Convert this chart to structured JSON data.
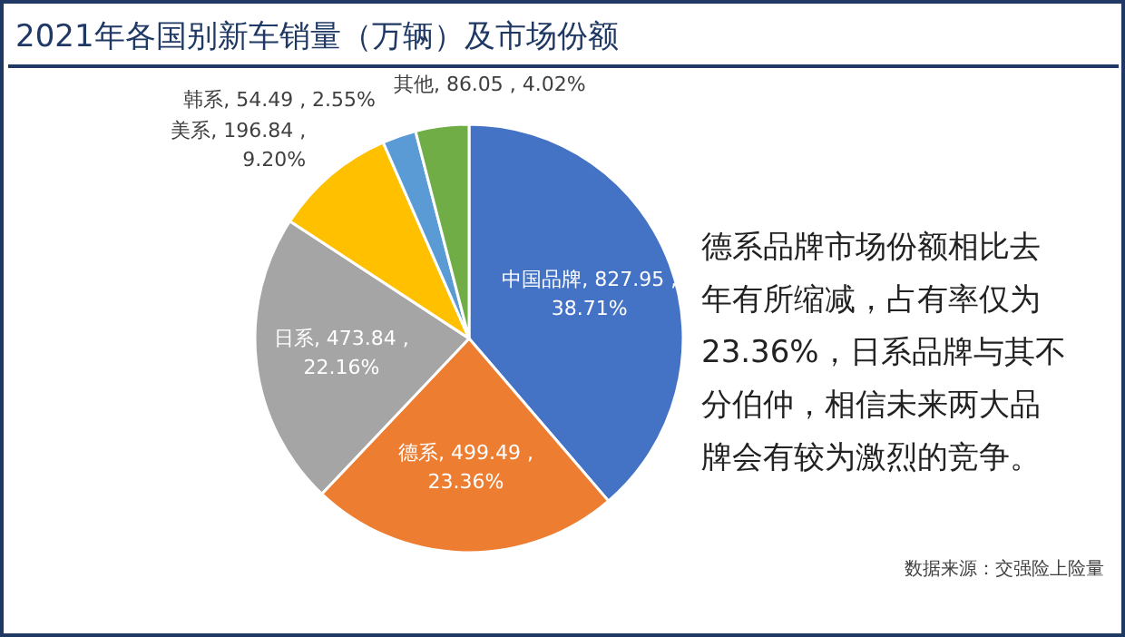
{
  "chart_data": {
    "type": "pie",
    "title": "2021年各国别新车销量（万辆）及市场份额",
    "categories": [
      "中国品牌",
      "德系",
      "日系",
      "美系",
      "韩系",
      "其他"
    ],
    "values": [
      827.95,
      499.49,
      473.84,
      196.84,
      54.49,
      86.05
    ],
    "value_labels": [
      "827.95 , 38.71%",
      "499.49 , 23.36%",
      "473.84 , 22.16%",
      "196.84 , 9.20%",
      "54.49 , 2.55%",
      "86.05 , 4.02%"
    ],
    "colors": [
      "#4472c4",
      "#ed7d31",
      "#a5a5a5",
      "#ffc000",
      "#5b9bd5",
      "#70ad47"
    ],
    "annotations": [
      "德系品牌市场份额相比去年有所缩减，占有率仅为23.36%，日系品牌与其不分伯仲，相信未来两大品牌会有较为激烈的竞争。",
      "数据来源：交强险上险量"
    ]
  }
}
